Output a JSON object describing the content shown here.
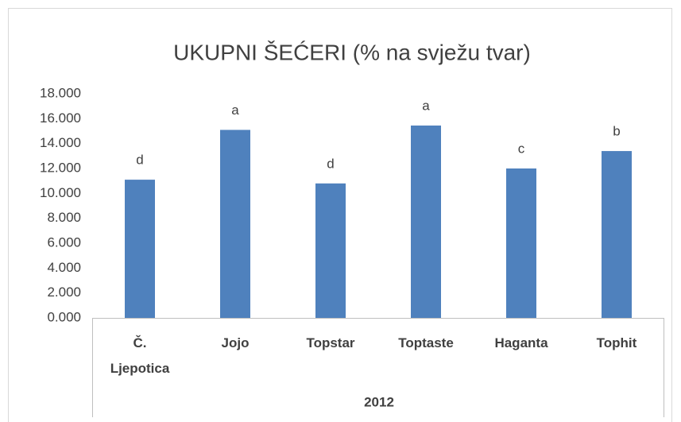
{
  "chart_data": {
    "type": "bar",
    "title": "UKUPNI ŠEĆERI (% na svježu tvar)",
    "categories": [
      "Č. Ljepotica",
      "Jojo",
      "Topstar",
      "Toptaste",
      "Haganta",
      "Tophit"
    ],
    "values": [
      11.1,
      15.1,
      10.8,
      15.45,
      12.0,
      13.4
    ],
    "annotations": [
      "d",
      "a",
      "d",
      "a",
      "c",
      "b"
    ],
    "group_label": "2012",
    "color": "#4f81bd",
    "ylim": [
      0,
      18
    ],
    "yticks": [
      {
        "value": 0,
        "label": "0.000"
      },
      {
        "value": 2,
        "label": "2.000"
      },
      {
        "value": 4,
        "label": "4.000"
      },
      {
        "value": 6,
        "label": "6.000"
      },
      {
        "value": 8,
        "label": "8.000"
      },
      {
        "value": 10,
        "label": "10.000"
      },
      {
        "value": 12,
        "label": "12.000"
      },
      {
        "value": 14,
        "label": "14.000"
      },
      {
        "value": 16,
        "label": "16.000"
      },
      {
        "value": 18,
        "label": "18.000"
      }
    ],
    "grid": false
  }
}
